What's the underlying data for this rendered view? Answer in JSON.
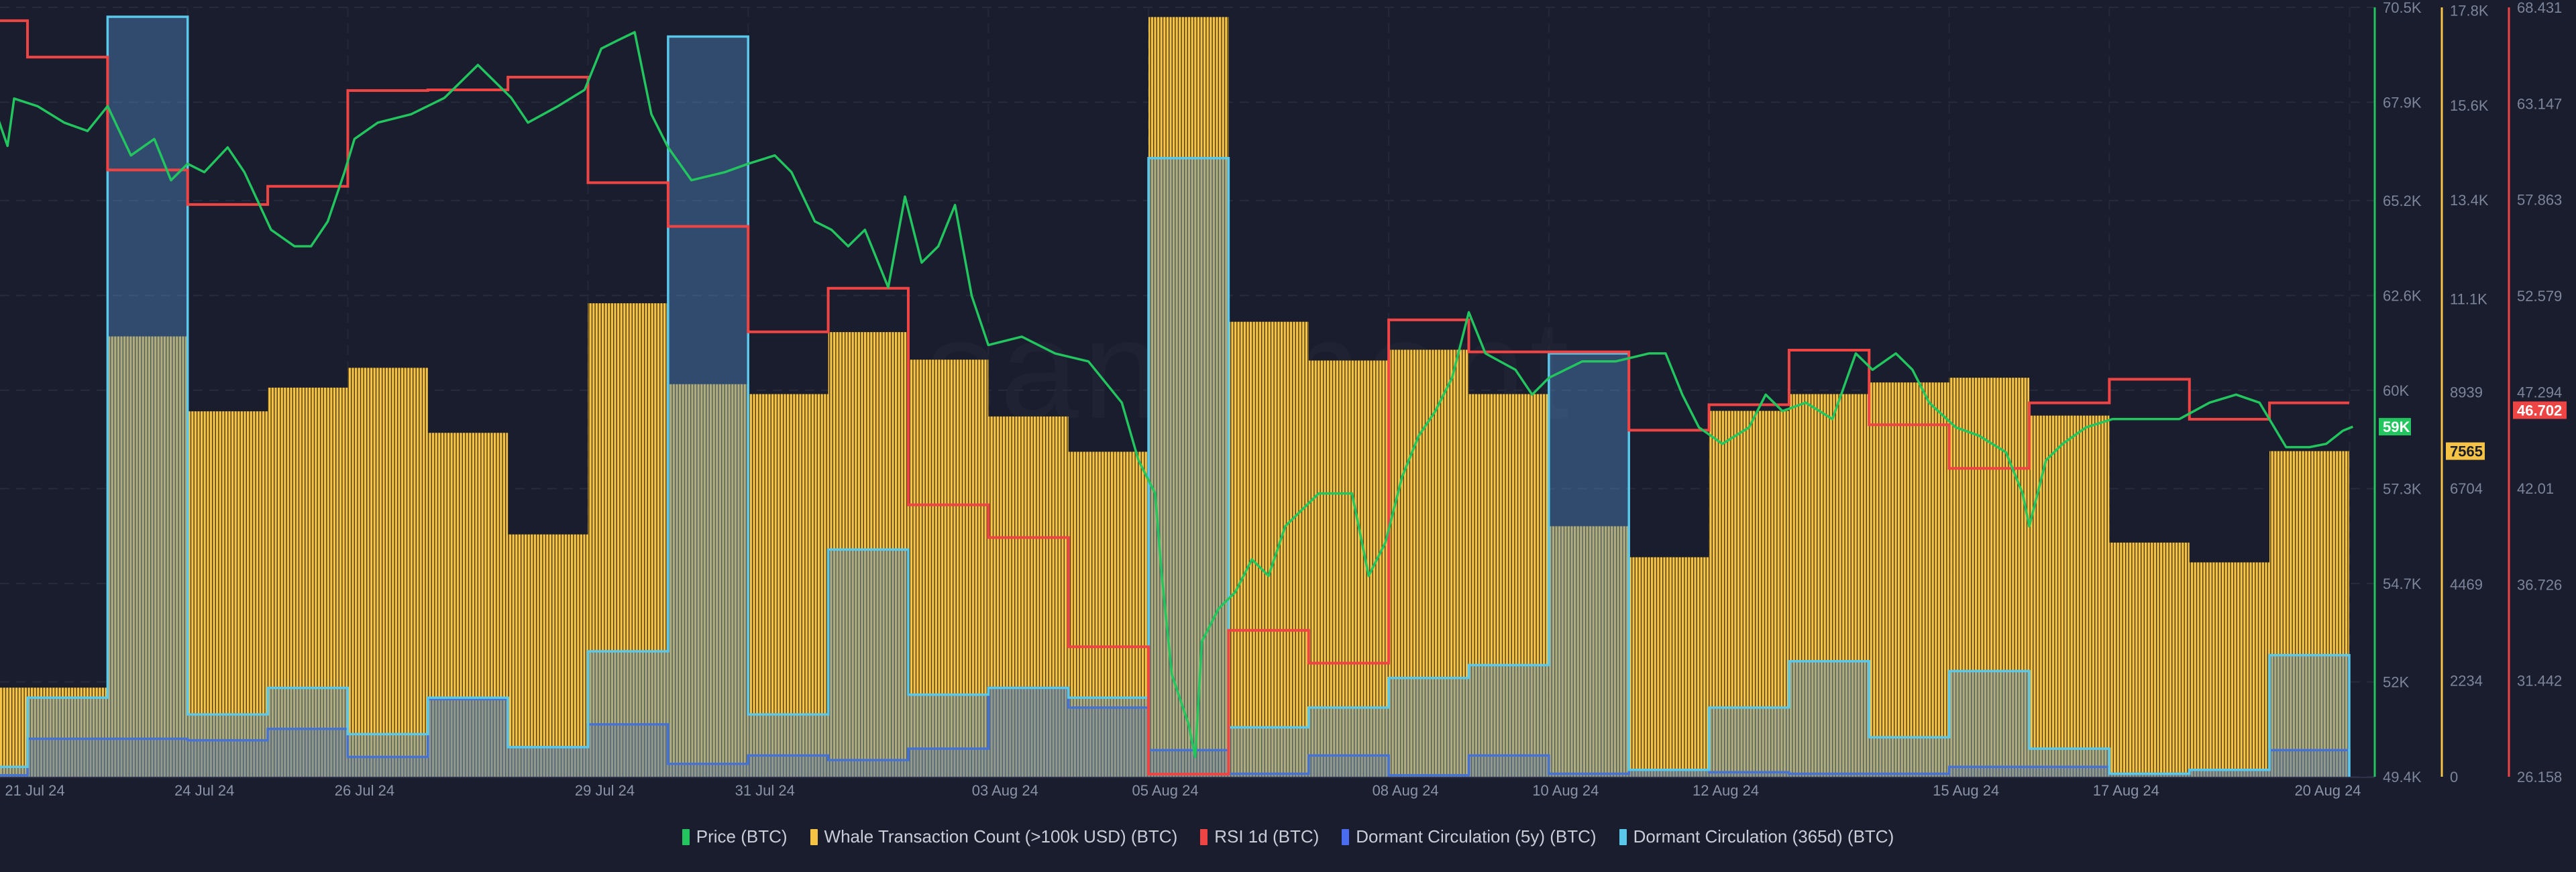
{
  "watermark": "santiment",
  "legend": [
    {
      "label": "Price (BTC)",
      "color": "#22c55e"
    },
    {
      "label": "Whale Transaction Count (>100k USD) (BTC)",
      "color": "#f6c344"
    },
    {
      "label": "RSI 1d (BTC)",
      "color": "#ef4444"
    },
    {
      "label": "Dormant Circulation (5y) (BTC)",
      "color": "#4a6cf0"
    },
    {
      "label": "Dormant Circulation (365d) (BTC)",
      "color": "#5ac8ea"
    }
  ],
  "chart_data": {
    "type": "combo",
    "grid": true,
    "legend_position": "bottom",
    "x_ticks": [
      "21 Jul 24",
      "24 Jul 24",
      "26 Jul 24",
      "29 Jul 24",
      "31 Jul 24",
      "03 Aug 24",
      "05 Aug 24",
      "08 Aug 24",
      "10 Aug 24",
      "12 Aug 24",
      "15 Aug 24",
      "17 Aug 24",
      "20 Aug 24"
    ],
    "x_tick_dates": [
      "2024-07-21",
      "2024-07-24",
      "2024-07-26",
      "2024-07-29",
      "2024-07-31",
      "2024-08-03",
      "2024-08-05",
      "2024-08-08",
      "2024-08-10",
      "2024-08-12",
      "2024-08-15",
      "2024-08-17",
      "2024-08-20"
    ],
    "xlim": [
      "2024-07-20T15:00",
      "2024-08-20T07:00"
    ],
    "days": [
      "2024-07-21",
      "2024-07-22",
      "2024-07-23",
      "2024-07-24",
      "2024-07-25",
      "2024-07-26",
      "2024-07-27",
      "2024-07-28",
      "2024-07-29",
      "2024-07-30",
      "2024-07-31",
      "2024-08-01",
      "2024-08-02",
      "2024-08-03",
      "2024-08-04",
      "2024-08-05",
      "2024-08-06",
      "2024-08-07",
      "2024-08-08",
      "2024-08-09",
      "2024-08-10",
      "2024-08-11",
      "2024-08-12",
      "2024-08-13",
      "2024-08-14",
      "2024-08-15",
      "2024-08-16",
      "2024-08-17",
      "2024-08-18",
      "2024-08-19"
    ],
    "y_axes": [
      {
        "series": "Price (BTC)",
        "color": "#22c55e",
        "range": [
          49.4,
          70.5
        ],
        "tick_values": [
          49.4,
          52,
          54.7,
          57.3,
          60,
          62.6,
          65.2,
          67.9,
          70.5
        ],
        "tick_labels": [
          "49.4K",
          "52K",
          "54.7K",
          "57.3K",
          "60K",
          "62.6K",
          "65.2K",
          "67.9K",
          "70.5K"
        ],
        "current_label": "59K",
        "current_value": 59.0
      },
      {
        "series": "Whale Transaction Count (>100k USD) (BTC)",
        "color": "#f6c344",
        "range": [
          0,
          17874
        ],
        "tick_values": [
          0,
          2234,
          4469,
          6704,
          8939,
          11100,
          13400,
          15600,
          17800
        ],
        "tick_labels": [
          "0",
          "2234",
          "4469",
          "6704",
          "8939",
          "11.1K",
          "13.4K",
          "15.6K",
          "17.8K"
        ],
        "current_label": "7565",
        "current_value": 7565
      },
      {
        "series": "RSI 1d (BTC)",
        "color": "#ef4444",
        "range": [
          26.158,
          68.431
        ],
        "tick_values": [
          26.158,
          31.442,
          36.726,
          42.01,
          47.294,
          52.579,
          57.863,
          63.147,
          68.431
        ],
        "tick_labels": [
          "26.158",
          "31.442",
          "36.726",
          "42.01",
          "47.294",
          "52.579",
          "57.863",
          "63.147",
          "68.431"
        ],
        "current_label": "46.702",
        "current_value": 46.702
      }
    ],
    "series": [
      {
        "name": "Whale Transaction Count (>100k USD) (BTC)",
        "type": "bar",
        "color": "#f6c344",
        "values": [
          2070,
          2070,
          10230,
          8490,
          9040,
          9500,
          7990,
          5630,
          11000,
          9120,
          8890,
          10330,
          9690,
          8370,
          7550,
          17650,
          10570,
          9670,
          9920,
          8890,
          5820,
          5100,
          8500,
          8890,
          9160,
          9270,
          8390,
          5440,
          4980,
          7565
        ]
      },
      {
        "name": "Dormant Circulation (5y) (BTC)",
        "type": "step-area",
        "color": "#4a6cf0",
        "unit_note": "relative level (no axis shown)",
        "values": [
          0.002,
          0.05,
          0.05,
          0.048,
          0.063,
          0.026,
          0.102,
          0.039,
          0.069,
          0.017,
          0.028,
          0.022,
          0.037,
          0.117,
          0.091,
          0.035,
          0.004,
          0.028,
          0.002,
          0.028,
          0.004,
          0.009,
          0.006,
          0.004,
          0.004,
          0.013,
          0.013,
          0.004,
          0.009,
          0.035
        ]
      },
      {
        "name": "Dormant Circulation (365d) (BTC)",
        "type": "step-area",
        "color": "#5ac8ea",
        "unit_note": "relative level (no axis shown)",
        "values": [
          0.013,
          0.104,
          1.0,
          0.082,
          0.117,
          0.056,
          0.104,
          0.039,
          0.165,
          0.974,
          0.082,
          0.299,
          0.108,
          0.117,
          0.104,
          0.814,
          0.065,
          0.091,
          0.13,
          0.147,
          0.557,
          0.009,
          0.091,
          0.152,
          0.052,
          0.139,
          0.037,
          0.004,
          0.009,
          0.16
        ]
      },
      {
        "name": "RSI 1d (BTC)",
        "type": "step-line",
        "color": "#ef4444",
        "values": [
          67.7,
          65.7,
          59.5,
          57.6,
          58.6,
          63.86,
          63.9,
          64.6,
          58.8,
          56.4,
          50.6,
          53.0,
          41.1,
          39.3,
          33.3,
          26.3,
          34.2,
          32.4,
          51.26,
          49.5,
          49.5,
          45.2,
          46.6,
          49.6,
          45.5,
          43.1,
          46.7,
          48.0,
          45.8,
          46.702
        ]
      },
      {
        "name": "Price (BTC)",
        "type": "line",
        "color": "#22c55e",
        "unit": "K USD",
        "points": [
          [
            "2024-07-21T15:00",
            67.5
          ],
          [
            "2024-07-21T18:00",
            66.7
          ],
          [
            "2024-07-21T20:00",
            68.0
          ],
          [
            "2024-07-22T03:00",
            67.79
          ],
          [
            "2024-07-22T11:00",
            67.34
          ],
          [
            "2024-07-22T18:00",
            67.11
          ],
          [
            "2024-07-23T00:00",
            67.79
          ],
          [
            "2024-07-23T07:00",
            66.44
          ],
          [
            "2024-07-23T14:00",
            66.89
          ],
          [
            "2024-07-23T19:00",
            65.76
          ],
          [
            "2024-07-24T00:00",
            66.21
          ],
          [
            "2024-07-24T05:00",
            65.98
          ],
          [
            "2024-07-24T12:00",
            66.66
          ],
          [
            "2024-07-24T17:00",
            65.98
          ],
          [
            "2024-07-25T01:00",
            64.4
          ],
          [
            "2024-07-25T08:00",
            63.95
          ],
          [
            "2024-07-25T13:00",
            63.95
          ],
          [
            "2024-07-25T18:00",
            64.63
          ],
          [
            "2024-07-25T23:00",
            65.98
          ],
          [
            "2024-07-26T02:00",
            66.89
          ],
          [
            "2024-07-26T09:00",
            67.34
          ],
          [
            "2024-07-26T19:00",
            67.57
          ],
          [
            "2024-07-27T05:00",
            68.02
          ],
          [
            "2024-07-27T15:00",
            68.92
          ],
          [
            "2024-07-27T20:00",
            68.47
          ],
          [
            "2024-07-28T01:00",
            68.02
          ],
          [
            "2024-07-28T06:00",
            67.34
          ],
          [
            "2024-07-28T15:00",
            67.79
          ],
          [
            "2024-07-28T23:00",
            68.24
          ],
          [
            "2024-07-29T04:00",
            69.37
          ],
          [
            "2024-07-29T09:00",
            69.6
          ],
          [
            "2024-07-29T14:00",
            69.82
          ],
          [
            "2024-07-29T19:00",
            67.57
          ],
          [
            "2024-07-30T00:00",
            66.66
          ],
          [
            "2024-07-30T07:00",
            65.76
          ],
          [
            "2024-07-30T17:00",
            65.98
          ],
          [
            "2024-07-31T00:00",
            66.21
          ],
          [
            "2024-07-31T08:00",
            66.44
          ],
          [
            "2024-07-31T13:00",
            65.98
          ],
          [
            "2024-07-31T20:00",
            64.63
          ],
          [
            "2024-08-01T01:00",
            64.4
          ],
          [
            "2024-08-01T06:00",
            63.95
          ],
          [
            "2024-08-01T11:00",
            64.4
          ],
          [
            "2024-08-01T18:00",
            62.82
          ],
          [
            "2024-08-01T23:00",
            65.31
          ],
          [
            "2024-08-02T04:00",
            63.5
          ],
          [
            "2024-08-02T09:00",
            63.95
          ],
          [
            "2024-08-02T14:00",
            65.08
          ],
          [
            "2024-08-02T19:00",
            62.59
          ],
          [
            "2024-08-03T00:00",
            61.24
          ],
          [
            "2024-08-03T10:00",
            61.47
          ],
          [
            "2024-08-03T20:00",
            61.01
          ],
          [
            "2024-08-04T06:00",
            60.79
          ],
          [
            "2024-08-04T16:00",
            59.66
          ],
          [
            "2024-08-04T21:00",
            58.08
          ],
          [
            "2024-08-05T02:00",
            57.17
          ],
          [
            "2024-08-05T04:00",
            54.91
          ],
          [
            "2024-08-05T07:00",
            52.2
          ],
          [
            "2024-08-05T12:00",
            50.85
          ],
          [
            "2024-08-05T14:00",
            49.94
          ],
          [
            "2024-08-05T16:00",
            53.11
          ],
          [
            "2024-08-05T21:00",
            54.01
          ],
          [
            "2024-08-06T02:00",
            54.46
          ],
          [
            "2024-08-06T07:00",
            55.36
          ],
          [
            "2024-08-06T12:00",
            54.91
          ],
          [
            "2024-08-06T17:00",
            56.27
          ],
          [
            "2024-08-06T22:00",
            56.72
          ],
          [
            "2024-08-07T03:00",
            57.17
          ],
          [
            "2024-08-07T13:00",
            57.17
          ],
          [
            "2024-08-07T18:00",
            54.91
          ],
          [
            "2024-08-07T23:00",
            55.82
          ],
          [
            "2024-08-08T04:00",
            57.62
          ],
          [
            "2024-08-08T09:00",
            58.75
          ],
          [
            "2024-08-08T14:00",
            59.43
          ],
          [
            "2024-08-08T19:00",
            60.34
          ],
          [
            "2024-08-09T00:00",
            62.14
          ],
          [
            "2024-08-09T05:00",
            61.01
          ],
          [
            "2024-08-09T14:00",
            60.56
          ],
          [
            "2024-08-09T19:00",
            59.88
          ],
          [
            "2024-08-10T00:00",
            60.34
          ],
          [
            "2024-08-10T10:00",
            60.79
          ],
          [
            "2024-08-10T20:00",
            60.79
          ],
          [
            "2024-08-11T06:00",
            61.01
          ],
          [
            "2024-08-11T11:00",
            61.01
          ],
          [
            "2024-08-11T16:00",
            59.88
          ],
          [
            "2024-08-11T21:00",
            58.98
          ],
          [
            "2024-08-12T04:00",
            58.53
          ],
          [
            "2024-08-12T12:00",
            58.98
          ],
          [
            "2024-08-12T17:00",
            59.88
          ],
          [
            "2024-08-12T22:00",
            59.43
          ],
          [
            "2024-08-13T05:00",
            59.66
          ],
          [
            "2024-08-13T13:00",
            59.21
          ],
          [
            "2024-08-13T20:00",
            61.01
          ],
          [
            "2024-08-14T01:00",
            60.56
          ],
          [
            "2024-08-14T08:00",
            61.01
          ],
          [
            "2024-08-14T13:00",
            60.56
          ],
          [
            "2024-08-14T18:00",
            59.66
          ],
          [
            "2024-08-15T02:00",
            58.98
          ],
          [
            "2024-08-15T09:00",
            58.75
          ],
          [
            "2024-08-15T17:00",
            58.3
          ],
          [
            "2024-08-15T22:00",
            57.17
          ],
          [
            "2024-08-16T00:00",
            56.27
          ],
          [
            "2024-08-16T05:00",
            58.08
          ],
          [
            "2024-08-16T10:00",
            58.53
          ],
          [
            "2024-08-16T17:00",
            58.98
          ],
          [
            "2024-08-17T01:00",
            59.21
          ],
          [
            "2024-08-17T11:00",
            59.21
          ],
          [
            "2024-08-17T21:00",
            59.21
          ],
          [
            "2024-08-18T06:00",
            59.66
          ],
          [
            "2024-08-18T14:00",
            59.88
          ],
          [
            "2024-08-18T21:00",
            59.66
          ],
          [
            "2024-08-19T05:00",
            58.44
          ],
          [
            "2024-08-19T12:00",
            58.44
          ],
          [
            "2024-08-19T17:00",
            58.53
          ],
          [
            "2024-08-19T22:00",
            58.89
          ],
          [
            "2024-08-20T01:00",
            59.0
          ]
        ]
      }
    ]
  }
}
